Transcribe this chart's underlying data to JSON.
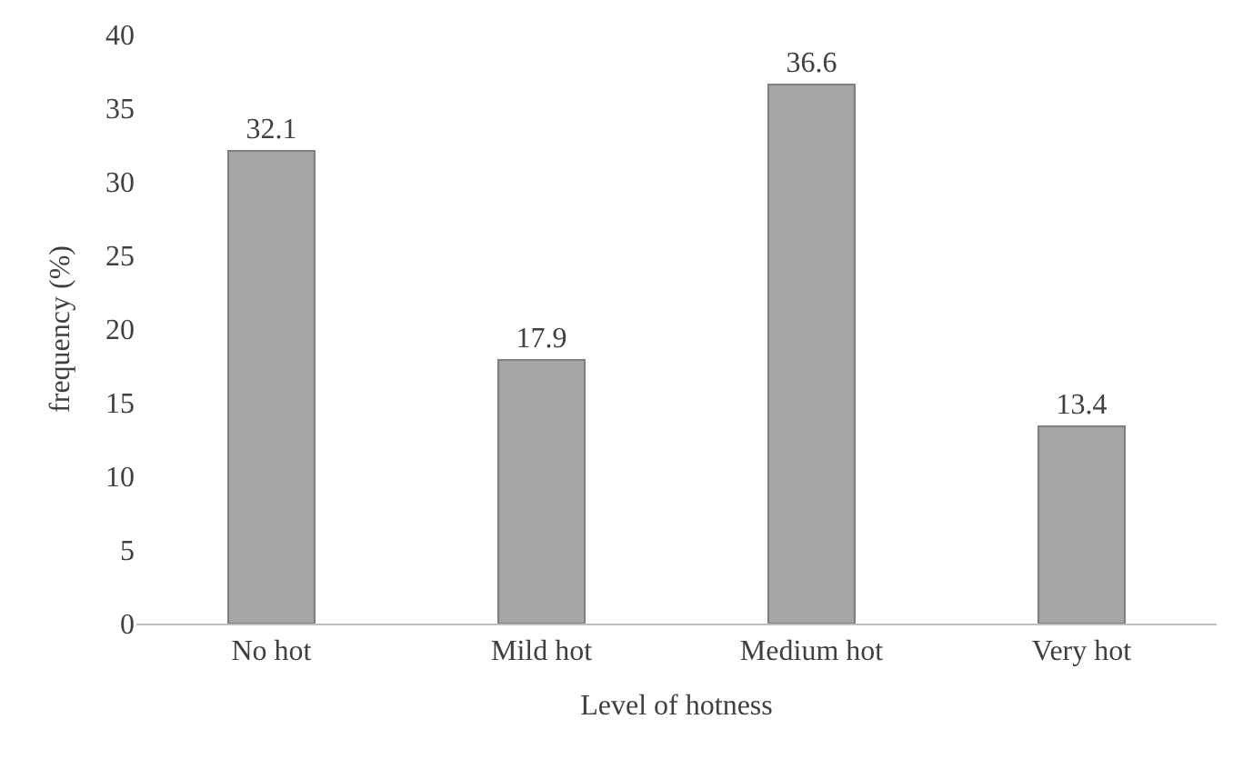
{
  "chart_data": {
    "type": "bar",
    "xlabel": "Level of hotness",
    "ylabel": "frequency (%)",
    "categories": [
      "No hot",
      "Mild hot",
      "Medium hot",
      "Very hot"
    ],
    "values": [
      32.1,
      17.9,
      36.6,
      13.4
    ],
    "color": "#a5a5a5",
    "ylim": [
      0,
      40
    ],
    "yticks": [
      0,
      5,
      10,
      15,
      20,
      25,
      30,
      35,
      40
    ],
    "grid": false,
    "data_labels": true
  }
}
